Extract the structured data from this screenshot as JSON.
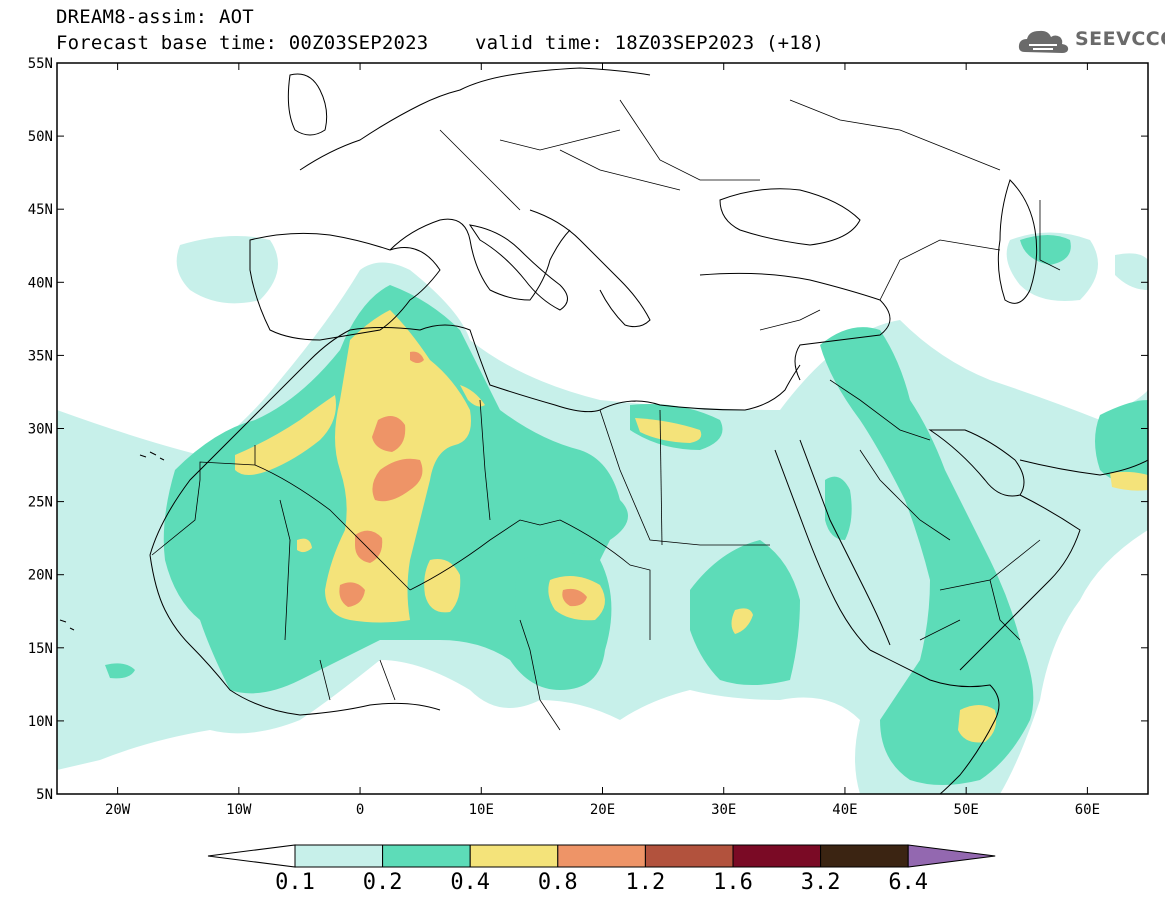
{
  "header": {
    "line1": "DREAM8-assim: AOT",
    "line2": "Forecast base time: 00Z03SEP2023    valid time: 18Z03SEP2023 (+18)"
  },
  "logo": {
    "text": "SEEVCCC",
    "icon": "cloud-icon"
  },
  "map": {
    "lon_range": [
      -25,
      65
    ],
    "lat_range": [
      5,
      55
    ],
    "lat_ticks": [
      "55N",
      "50N",
      "45N",
      "40N",
      "35N",
      "30N",
      "25N",
      "20N",
      "15N",
      "10N",
      "5N"
    ],
    "lon_ticks": [
      "20W",
      "10W",
      "0",
      "10E",
      "20E",
      "30E",
      "40E",
      "50E",
      "60E"
    ]
  },
  "colorbar": {
    "labels": [
      "0.1",
      "0.2",
      "0.4",
      "0.8",
      "1.2",
      "1.6",
      "3.2",
      "6.4"
    ],
    "colors": [
      "#ffffff",
      "#c7f0ea",
      "#5ddcb8",
      "#f4e37a",
      "#ee9467",
      "#b2523d",
      "#7a0a25",
      "#3b2412",
      "#9368b0"
    ]
  }
}
